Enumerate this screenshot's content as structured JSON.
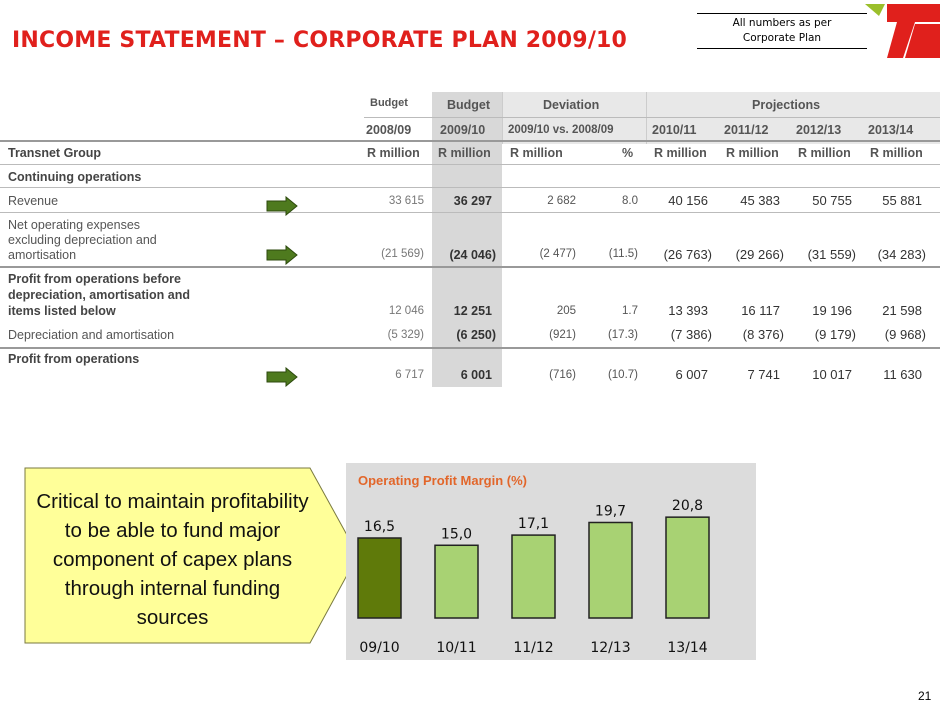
{
  "header": {
    "title": "INCOME STATEMENT – CORPORATE PLAN 2009/10",
    "note_line1": "All numbers  as per",
    "note_line2": "Corporate Plan"
  },
  "table": {
    "budget_label": "Budget",
    "group_budget": "Budget",
    "group_deviation": "Deviation",
    "group_projections": "Projections",
    "years": [
      "2008/09",
      "2009/10",
      "2009/10 vs. 2008/09",
      "2010/11",
      "2011/12",
      "2012/13",
      "2013/14"
    ],
    "company": "Transnet Group",
    "units": [
      "R million",
      "R million",
      "R million",
      "%",
      "R million",
      "R million",
      "R million",
      "R million"
    ],
    "section": "Continuing operations",
    "rows": [
      {
        "label": "Revenue",
        "actual": "33 615",
        "budget": "36 297",
        "dev": "2 682",
        "pct": "8.0",
        "p1": "40 156",
        "p2": "45 383",
        "p3": "50 755",
        "p4": "55 881"
      },
      {
        "label_1": "Net operating expenses",
        "label_2": "excluding depreciation and",
        "label_3": "amortisation",
        "actual": "(21 569)",
        "budget": "(24 046)",
        "dev": "(2 477)",
        "pct": "(11.5)",
        "p1": "(26 763)",
        "p2": "(29 266)",
        "p3": "(31 559)",
        "p4": "(34 283)"
      },
      {
        "label_1": "Profit from operations before",
        "label_2": "depreciation, amortisation and",
        "label_3": "items listed below",
        "actual": "12 046",
        "budget": "12 251",
        "dev": "205",
        "pct": "1.7",
        "p1": "13 393",
        "p2": "16 117",
        "p3": "19 196",
        "p4": "21 598"
      },
      {
        "label": "Depreciation and amortisation",
        "actual": "(5 329)",
        "budget": "(6 250)",
        "dev": "(921)",
        "pct": "(17.3)",
        "p1": "(7 386)",
        "p2": "(8 376)",
        "p3": "(9 179)",
        "p4": "(9 968)"
      },
      {
        "label": "Profit from operations",
        "actual": "6 717",
        "budget": "6 001",
        "dev": "(716)",
        "pct": "(10.7)",
        "p1": "6 007",
        "p2": "7 741",
        "p3": "10 017",
        "p4": "11 630"
      }
    ]
  },
  "callout": {
    "text": "Critical to maintain profitability to be able to fund major component of capex plans through internal funding sources"
  },
  "chart_data": {
    "type": "bar",
    "title": "Operating Profit Margin (%)",
    "categories": [
      "09/10",
      "10/11",
      "11/12",
      "12/13",
      "13/14"
    ],
    "values": [
      16.5,
      15.0,
      17.1,
      19.7,
      20.8
    ],
    "value_labels": [
      "16,5",
      "15,0",
      "17,1",
      "19,7",
      "20,8"
    ],
    "colors": [
      "#5f7a0a",
      "#a8d273",
      "#a8d273",
      "#a8d273",
      "#a8d273"
    ],
    "ylim": [
      0,
      25
    ],
    "grid": false,
    "legend": "none"
  },
  "page": {
    "number": "21"
  },
  "colors": {
    "title": "#e0201c",
    "arrow": "#4e7a1e",
    "callout_fill": "#ffff99"
  }
}
